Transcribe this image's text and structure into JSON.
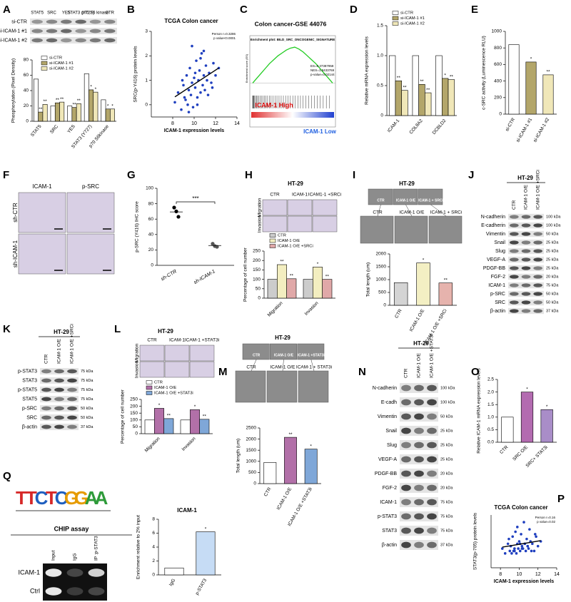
{
  "chart_data": [
    {
      "panel": "A",
      "type": "bar",
      "blot_columns": [
        "STAT5",
        "SRC",
        "YES",
        "STAT3 (Y727)",
        "p70 S6 kinase",
        "CTR"
      ],
      "blot_rows": [
        "si-CTR",
        "si-ICAM-1 #1",
        "si-ICAM-1 #2"
      ],
      "categories": [
        "STAT5",
        "SRC",
        "YES",
        "STAT3 (Y727)",
        "p70 S6kinase"
      ],
      "series": [
        {
          "name": "si-CTR",
          "color": "#ffffff",
          "values": [
            55,
            20,
            20,
            62,
            28
          ],
          "stars": [
            null,
            null,
            null,
            null,
            null
          ]
        },
        {
          "name": "si-ICAM-1 #1",
          "color": "#b3a66a",
          "values": [
            12,
            24,
            18,
            41,
            16
          ],
          "stars": [
            "**",
            "**",
            "**",
            "*",
            "*"
          ]
        },
        {
          "name": "si-ICAM-1 #2",
          "color": "#f0e7b8",
          "values": [
            22,
            25,
            23,
            38,
            16
          ],
          "stars": [
            "**",
            "**",
            "**",
            "*",
            "*"
          ]
        }
      ],
      "ylabel": "Phosphorylation (Pixel Density)",
      "ylim": [
        0,
        80
      ],
      "yticks": [
        0,
        20,
        40,
        60,
        80
      ]
    },
    {
      "panel": "B",
      "type": "scatter",
      "title": "TCGA Colon cancer",
      "annotation": [
        "Person r=0.3286",
        "p value<0.0001"
      ],
      "x": [
        8.2,
        8.5,
        8.8,
        9.0,
        9.1,
        9.3,
        9.4,
        9.5,
        9.6,
        9.7,
        9.8,
        9.9,
        10.0,
        10.1,
        10.2,
        10.3,
        10.4,
        10.5,
        10.6,
        10.7,
        10.8,
        10.9,
        11.0,
        11.1,
        11.2,
        11.4,
        11.6,
        11.8,
        12.0,
        12.3,
        9.2,
        9.8,
        10.3,
        10.6,
        11.3,
        8.9,
        10.9,
        11.7,
        9.5,
        10.1
      ],
      "y": [
        0.1,
        0.5,
        -0.2,
        0.8,
        0.3,
        1.2,
        0.0,
        0.6,
        1.5,
        0.4,
        0.9,
        -0.1,
        1.1,
        0.7,
        1.8,
        0.3,
        1.0,
        1.4,
        0.5,
        2.1,
        0.8,
        1.2,
        0.6,
        1.6,
        1.0,
        1.3,
        0.9,
        1.7,
        1.2,
        1.5,
        0.2,
        2.4,
        0.0,
        1.9,
        0.4,
        1.0,
        2.2,
        0.7,
        -0.3,
        1.3
      ],
      "color": "#1f3fbf",
      "xlabel": "ICAM-1 expression levels",
      "ylabel": "SRC(p-Y416) protein levels",
      "xlim": [
        6,
        14
      ],
      "xticks": [
        8,
        10,
        12,
        14
      ],
      "ylim": [
        -0.5,
        3
      ],
      "yticks": [
        0,
        1,
        2,
        3
      ]
    },
    {
      "panel": "C",
      "type": "gsea",
      "title": "Colon cancer-GSE 44076",
      "subtitle": "Enrichment plot: BILD_SRC_ONCOGENIC_SIGNATURE",
      "stats": [
        "ES=0.37387958",
        "NES=1.8433769",
        "p-value=0.02144"
      ],
      "ylabel": "Enrichment score (ES)",
      "values": [
        0,
        0.05,
        0.1,
        0.15,
        0.2,
        0.24,
        0.28,
        0.31,
        0.34,
        0.36,
        0.37,
        0.35,
        0.32,
        0.28,
        0.24,
        0.2,
        0.15,
        0.1,
        0.05,
        0
      ],
      "color": "#22cc22",
      "ylim": [
        -0.1,
        0.4
      ],
      "high_label": "ICAM-1 High",
      "low_label": "ICAM-1 Low"
    },
    {
      "panel": "D",
      "type": "bar",
      "categories": [
        "ICAM-1",
        "COL8A2",
        "DCBLD2"
      ],
      "series": [
        {
          "name": "si-CTR",
          "color": "#ffffff",
          "values": [
            1,
            1,
            1
          ],
          "stars": [
            null,
            null,
            null
          ]
        },
        {
          "name": "si-ICAM-1 #1",
          "color": "#b3a66a",
          "values": [
            0.58,
            0.52,
            0.62
          ],
          "stars": [
            "**",
            "**",
            "*"
          ]
        },
        {
          "name": "si-ICAM-1 #2",
          "color": "#f0e7b8",
          "values": [
            0.42,
            0.38,
            0.6
          ],
          "stars": [
            "**",
            "**",
            "**"
          ]
        }
      ],
      "ylabel": "Relative mRNA expression levels",
      "ylim": [
        0,
        1.5
      ],
      "yticks": [
        0,
        0.5,
        {
          "value": 1,
          "label": "1.0"
        },
        1.5
      ]
    },
    {
      "panel": "E",
      "type": "bar",
      "categories": [
        "si-CTR",
        "si-ICAM-1 #1",
        "si-ICAM-1 #2"
      ],
      "values": [
        840,
        630,
        475
      ],
      "colors": [
        "#ffffff",
        "#b3a66a",
        "#f0e7b8"
      ],
      "stars": [
        null,
        "*",
        "**"
      ],
      "ylabel": "c-SRC activity (Luminescence RLU)",
      "ylim": [
        0,
        1000
      ],
      "yticks": [
        0,
        200,
        400,
        600,
        800,
        1000
      ]
    },
    {
      "panel": "F",
      "type": "images",
      "column_labels": [
        "ICAM-1",
        "p-SRC"
      ],
      "row_labels": [
        "sh-CTR",
        "sh-ICAM-1"
      ]
    },
    {
      "panel": "G",
      "type": "dot",
      "groups": [
        {
          "name": "sh-CTR",
          "values": [
            75,
            70,
            63
          ]
        },
        {
          "name": "sh-ICAM-1",
          "values": [
            28,
            25,
            24
          ]
        }
      ],
      "annotation": "***",
      "ylabel": "p-SRC (Y416) IHC score",
      "ylim": [
        0,
        100
      ],
      "yticks": [
        0,
        20,
        40,
        60,
        80,
        100
      ]
    },
    {
      "panel": "H",
      "type": "bar",
      "title": "HT-29",
      "image_labels": [
        "CTR",
        "ICAM-1",
        "ICAM1-1 +SRCi"
      ],
      "image_rows": [
        "Migration",
        "Invasion"
      ],
      "categories": [
        "Migration",
        "Invasion"
      ],
      "series": [
        {
          "name": "CTR",
          "color": "#cccccc",
          "values": [
            100,
            100
          ],
          "stars": [
            null,
            null
          ]
        },
        {
          "name": "ICAM-1 O/E",
          "color": "#f3eec0",
          "values": [
            178,
            165
          ],
          "stars": [
            "**",
            "*"
          ]
        },
        {
          "name": "ICAM-1 O/E +SRCi",
          "color": "#e0a8a8",
          "values": [
            103,
            100
          ],
          "stars": [
            "**",
            "**"
          ]
        }
      ],
      "ylabel": "Percentage of cell number",
      "ylim": [
        0,
        250
      ],
      "yticks": [
        0,
        50,
        100,
        150,
        200,
        250
      ]
    },
    {
      "panel": "I",
      "type": "bar",
      "title": "HT-29",
      "strip_labels": [
        "CTR",
        "ICAM-1 O/E",
        "ICAM-1 + SRCi"
      ],
      "image_labels": [
        "CTR",
        "ICAM-1 O/E",
        "ICAM-1 + SRCi"
      ],
      "categories": [
        "CTR",
        "ICAM-1 O/E",
        "ICAM-1 O/E +SRCi"
      ],
      "values": [
        880,
        1650,
        870
      ],
      "colors": [
        "#d4d4d4",
        "#f3efc3",
        "#e6b3ad"
      ],
      "stars": [
        null,
        "*",
        "**"
      ],
      "ylabel": "Total length (um)",
      "ylim": [
        0,
        2000
      ],
      "yticks": [
        0,
        500,
        1000,
        1500,
        2000
      ]
    },
    {
      "panel": "J",
      "type": "blot",
      "title": "HT-29",
      "columns": [
        "CTR",
        "ICAM-1 O/E",
        "ICAM-1 O/E +SRCi"
      ],
      "rows": [
        {
          "name": "N-cadherin",
          "kda": "100 kDa"
        },
        {
          "name": "E-cadherin",
          "kda": "100 kDa"
        },
        {
          "name": "Vimentin",
          "kda": "50 kDa"
        },
        {
          "name": "Snail",
          "kda": "25 kDa"
        },
        {
          "name": "Slug",
          "kda": "25 kDa"
        },
        {
          "name": "VEGF-A",
          "kda": "25 kDa"
        },
        {
          "name": "PDGF-BB",
          "kda": "25 kDa"
        },
        {
          "name": "FGF-2",
          "kda": "20 kDa"
        },
        {
          "name": "ICAM-1",
          "kda": "75 kDa"
        },
        {
          "name": "p-SRC",
          "kda": "50 kDa"
        },
        {
          "name": "SRC",
          "kda": "50 kDa"
        },
        {
          "name": "β-actin",
          "kda": "37 kDa"
        }
      ]
    },
    {
      "panel": "K",
      "type": "blot",
      "title": "HT-29",
      "columns": [
        "CTR",
        "ICAM-1 O/E",
        "ICAM-1 O/E +SRCi"
      ],
      "rows": [
        {
          "name": "p-STAT3",
          "kda": "75 kDa"
        },
        {
          "name": "STAT3",
          "kda": "75 kDa"
        },
        {
          "name": "p-STAT5",
          "kda": "75 kDa"
        },
        {
          "name": "STAT5",
          "kda": "75 kDa"
        },
        {
          "name": "p-SRC",
          "kda": "50 kDa"
        },
        {
          "name": "SRC",
          "kda": "50 kDa"
        },
        {
          "name": "β-actin",
          "kda": "37 kDa"
        }
      ]
    },
    {
      "panel": "L",
      "type": "bar",
      "title": "HT-29",
      "image_labels": [
        "CTR",
        "ICAM-1",
        "ICAM-1 +STAT3i"
      ],
      "image_rows": [
        "Migration",
        "Invasion"
      ],
      "categories": [
        "Migration",
        "Invasion"
      ],
      "series": [
        {
          "name": "CTR",
          "color": "#ffffff",
          "values": [
            100,
            100
          ],
          "stars": [
            null,
            null
          ]
        },
        {
          "name": "ICAM-1 O/E",
          "color": "#b270a8",
          "values": [
            185,
            175
          ],
          "stars": [
            "*",
            "*"
          ]
        },
        {
          "name": "ICAM-1 O/E +STAT3i",
          "color": "#7fa7d8",
          "values": [
            110,
            105
          ],
          "stars": [
            "**",
            "**"
          ]
        }
      ],
      "ylabel": "Percentage of cell number",
      "ylim": [
        0,
        250
      ],
      "yticks": [
        0,
        50,
        100,
        150,
        200,
        250
      ]
    },
    {
      "panel": "M",
      "type": "bar",
      "title": "HT-29",
      "strip_labels": [
        "CTR",
        "ICAM-1 O/E",
        "ICAM-1 +STAT3i"
      ],
      "image_labels": [
        "CTR",
        "ICAM-1 O/E",
        "ICAM-1 + STAT3i"
      ],
      "categories": [
        "CTR",
        "ICAM-1 O/E",
        "ICAM-1 O/E +STAT3i"
      ],
      "values": [
        950,
        2080,
        1550
      ],
      "colors": [
        "#ffffff",
        "#b270a8",
        "#7fa7d8"
      ],
      "stars": [
        null,
        "**",
        "*"
      ],
      "ylabel": "Total length (um)",
      "ylim": [
        0,
        2500
      ],
      "yticks": [
        0,
        500,
        1000,
        1500,
        2000,
        2500
      ]
    },
    {
      "panel": "N",
      "type": "blot",
      "title": "HT-29",
      "columns": [
        "CTR",
        "ICAM-1 O/E",
        "ICAM-1 O/E +STAT3i"
      ],
      "rows": [
        {
          "name": "N-cadherin",
          "kda": "100 kDa"
        },
        {
          "name": "E-cadh",
          "kda": "100 kDa"
        },
        {
          "name": "Vimentin",
          "kda": "50 kDa"
        },
        {
          "name": "Snail",
          "kda": "25 kDa"
        },
        {
          "name": "Slug",
          "kda": "25 kDa"
        },
        {
          "name": "VEGF-A",
          "kda": "25 kDa"
        },
        {
          "name": "PDGF-BB",
          "kda": "20 kDa"
        },
        {
          "name": "FGF-2",
          "kda": "20 kDa"
        },
        {
          "name": "ICAM-1",
          "kda": "75 kDa"
        },
        {
          "name": "p-STAT3",
          "kda": "75 kDa"
        },
        {
          "name": "STAT3",
          "kda": "75 kDa"
        },
        {
          "name": "β-actin",
          "kda": "37 kDa"
        }
      ]
    },
    {
      "panel": "O",
      "type": "bar",
      "categories": [
        "CTR",
        "SRC O/E",
        "SRC+ STAT3i"
      ],
      "values": [
        1.0,
        2.0,
        1.3
      ],
      "colors": [
        "#ffffff",
        "#b36bb0",
        "#a98dc8"
      ],
      "stars": [
        null,
        "*",
        "*"
      ],
      "ylabel": "Relative ICAM-1 mRNA expression levels",
      "ylim": [
        0,
        2.5
      ],
      "yticks": [
        {
          "value": 0,
          "label": "0.0"
        },
        0.5,
        {
          "value": 1,
          "label": "1.0"
        },
        1.5,
        {
          "value": 2,
          "label": "2.0"
        },
        2.5
      ]
    },
    {
      "panel": "P",
      "type": "scatter",
      "title": "TCGA Colon cancer",
      "annotation": [
        "Person r=0.16",
        "p value=0.02"
      ],
      "x": [
        8.2,
        8.5,
        8.8,
        9.0,
        9.1,
        9.3,
        9.4,
        9.5,
        9.6,
        9.7,
        9.8,
        9.9,
        10.0,
        10.1,
        10.2,
        10.3,
        10.4,
        10.5,
        10.6,
        10.7,
        10.8,
        10.9,
        11.0,
        11.1,
        11.2,
        11.4,
        11.6,
        11.8,
        12.0,
        12.3,
        9.2,
        9.8,
        10.3,
        10.6,
        11.3,
        8.9,
        10.9,
        11.7,
        9.5,
        10.1
      ],
      "y": [
        0.3,
        0.1,
        0.5,
        0.2,
        0.4,
        0.8,
        0.2,
        0.3,
        1.0,
        0.1,
        0.5,
        0.3,
        0.6,
        0.2,
        0.9,
        0.4,
        0.3,
        1.4,
        0.5,
        0.2,
        0.7,
        0.4,
        0.3,
        1.1,
        0.6,
        0.5,
        0.2,
        0.8,
        0.4,
        0.6,
        0.1,
        1.2,
        0.3,
        0.5,
        0.2,
        0.7,
        0.4,
        0.9,
        0.2,
        0.5
      ],
      "color": "#1f3fbf",
      "xlabel": "ICAM-1 expression levels",
      "ylabel": "STAT3(p-705) protein levels",
      "xlim": [
        7,
        14
      ],
      "xticks": [
        8,
        10,
        12,
        14
      ],
      "ylim": [
        -0.5,
        1.7
      ]
    },
    {
      "panel": "Q",
      "type": "bar",
      "motif": [
        "T",
        "T",
        "C",
        "T",
        "C",
        "G",
        "G",
        "A",
        "A"
      ],
      "gel_title": "CHIP assay",
      "gel_lanes": [
        "Input",
        "IgG",
        "IP :p-STAT3"
      ],
      "gel_rows": [
        "ICAM-1",
        "Ctrl"
      ],
      "title": "ICAM-1",
      "categories": [
        "IgG",
        "p-STAT3"
      ],
      "values": [
        1.0,
        6.2
      ],
      "colors": [
        "#ffffff",
        "#c6dcf5"
      ],
      "stars": [
        null,
        "*"
      ],
      "ylabel": "Enrichment relative to 2% input",
      "ylim": [
        0,
        8
      ],
      "yticks": [
        0,
        2,
        4,
        6,
        8
      ]
    }
  ]
}
